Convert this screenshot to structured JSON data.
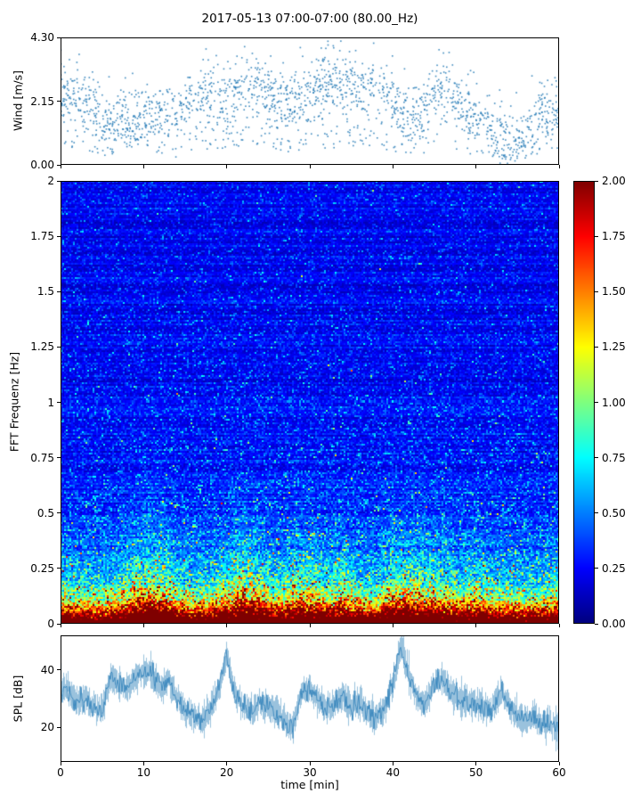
{
  "figure": {
    "title": "2017-05-13 07:00-07:00 (80.00_Hz)",
    "xlabel": "time [min]",
    "background_color": "#ffffff",
    "accent_color": "#1f77b4"
  },
  "axes": {
    "wind": {
      "ylabel": "Wind [m/s]",
      "yticks": [
        "4.30",
        "2.15",
        "0.00"
      ],
      "ylim": [
        0,
        4.3
      ]
    },
    "spectrogram": {
      "ylabel": "FFT Frequenz [Hz]",
      "yticks": [
        "2",
        "1.75",
        "1.5",
        "1.25",
        "1",
        "0.75",
        "0.5",
        "0.25",
        "0"
      ],
      "ylim": [
        0,
        2
      ]
    },
    "colorbar": {
      "ticks": [
        "2.00",
        "1.75",
        "1.50",
        "1.25",
        "1.00",
        "0.75",
        "0.50",
        "0.25",
        "0.00"
      ],
      "vmin": 0,
      "vmax": 2,
      "cmap": "jet"
    },
    "spl": {
      "ylabel": "SPL [dB]",
      "yticks": [
        "40",
        "20"
      ],
      "ylim_view": [
        8,
        52
      ]
    },
    "x": {
      "ticks": [
        "0",
        "10",
        "20",
        "30",
        "40",
        "50",
        "60"
      ],
      "xlim": [
        0,
        60
      ]
    }
  },
  "chart_data": [
    {
      "type": "scatter",
      "name": "wind_speed",
      "ylabel": "Wind [m/s]",
      "xlim": [
        0,
        60
      ],
      "ylim": [
        0,
        4.3
      ],
      "yticks": [
        0.0,
        2.15,
        4.3
      ],
      "marker_color": "#1f77b4",
      "marker_size_px": 1.6,
      "n_points": 1900,
      "seed": 7,
      "mean_by_2min": [
        2.4,
        2.5,
        2.0,
        1.4,
        1.5,
        1.6,
        1.8,
        1.7,
        2.2,
        2.4,
        2.2,
        2.8,
        2.7,
        2.3,
        2.2,
        2.4,
        2.8,
        2.9,
        2.7,
        2.6,
        2.3,
        1.8,
        2.0,
        2.9,
        2.2,
        1.6,
        1.3,
        0.9,
        1.2,
        1.7,
        1.9
      ],
      "gauss_spread": 0.45
    },
    {
      "type": "heatmap",
      "name": "acoustic_spectrogram",
      "ylabel": "FFT Frequenz [Hz]",
      "xlim": [
        0,
        60
      ],
      "freq_range": [
        0,
        2
      ],
      "cmap": "jet",
      "vmin": 0,
      "vmax": 2,
      "background_level": 0.16,
      "low_freq_energy_scale": 2.0,
      "low_freq_decay_hz": 0.055,
      "mid_freq_decay_hz": 0.2,
      "activity_by_2min": [
        1.0,
        0.9,
        0.8,
        0.9,
        1.3,
        1.8,
        1.8,
        1.1,
        0.9,
        1.0,
        1.3,
        1.9,
        1.5,
        1.0,
        1.4,
        1.5,
        1.1,
        1.4,
        1.0,
        0.9,
        1.5,
        1.6,
        1.5,
        1.3,
        1.0,
        1.2,
        0.9,
        0.9,
        0.8,
        0.9,
        1.0
      ],
      "grid_cols": 280,
      "grid_rows": 248,
      "seed": 11
    },
    {
      "type": "line",
      "name": "sound_pressure_level",
      "ylabel": "SPL [dB]",
      "xlim": [
        0,
        60
      ],
      "ylim_view": [
        8,
        52
      ],
      "yticks": [
        20,
        40
      ],
      "line_color": "#1f77b4",
      "mean_by_min": [
        35,
        32,
        29,
        30,
        27,
        26,
        38,
        35,
        33,
        38,
        39,
        40,
        34,
        36,
        30,
        26,
        24,
        22,
        27,
        33,
        45,
        31,
        27,
        26,
        29,
        27,
        25,
        22,
        20,
        32,
        34,
        30,
        26,
        28,
        31,
        27,
        29,
        25,
        23,
        27,
        35,
        48,
        38,
        30,
        28,
        35,
        37,
        32,
        30,
        29,
        28,
        27,
        26,
        33,
        28,
        24,
        22,
        24,
        21,
        22,
        20
      ],
      "band_halfwidth_db": 4,
      "seed": 3
    }
  ]
}
